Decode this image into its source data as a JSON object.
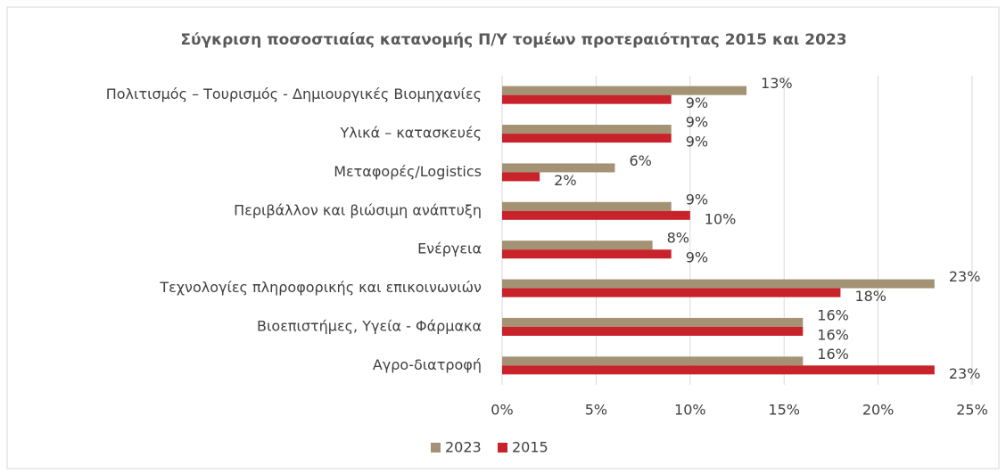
{
  "chart_data": {
    "type": "bar",
    "orientation": "horizontal",
    "title": "Σύγκριση ποσοστιαίας κατανομής Π/Υ τομέων προτεραιότητας 2015 και 2023",
    "categories": [
      "Πολιτισμός – Τουρισμός - Δημιουργικές Βιομηχανίες",
      "Υλικά – κατασκευές",
      "Μεταφορές/Logistics",
      "Περιβάλλον και βιώσιμη ανάπτυξη",
      "Ενέργεια",
      "Τεχνολογίες πληροφορικής και επικοινωνιών",
      "Βιοεπιστήμες, Υγεία - Φάρμακα",
      "Αγρο-διατροφή"
    ],
    "series": [
      {
        "name": "2023",
        "color": "#a39274",
        "values": [
          13,
          9,
          6,
          9,
          8,
          23,
          16,
          16
        ],
        "value_labels": [
          "13%",
          "9%",
          "6%",
          "9%",
          "8%",
          "23%",
          "16%",
          "16%"
        ]
      },
      {
        "name": "2015",
        "color": "#c8222b",
        "values": [
          9,
          9,
          2,
          10,
          9,
          18,
          16,
          23
        ],
        "value_labels": [
          "9%",
          "9%",
          "2%",
          "10%",
          "9%",
          "18%",
          "16%",
          "23%"
        ]
      }
    ],
    "xlim": [
      0,
      25
    ],
    "xticks": [
      {
        "value": 0,
        "label": "0%"
      },
      {
        "value": 5,
        "label": "5%"
      },
      {
        "value": 10,
        "label": "10%"
      },
      {
        "value": 15,
        "label": "15%"
      },
      {
        "value": 20,
        "label": "20%"
      },
      {
        "value": 25,
        "label": "25%"
      }
    ],
    "grid": true,
    "legend": "bottom"
  }
}
